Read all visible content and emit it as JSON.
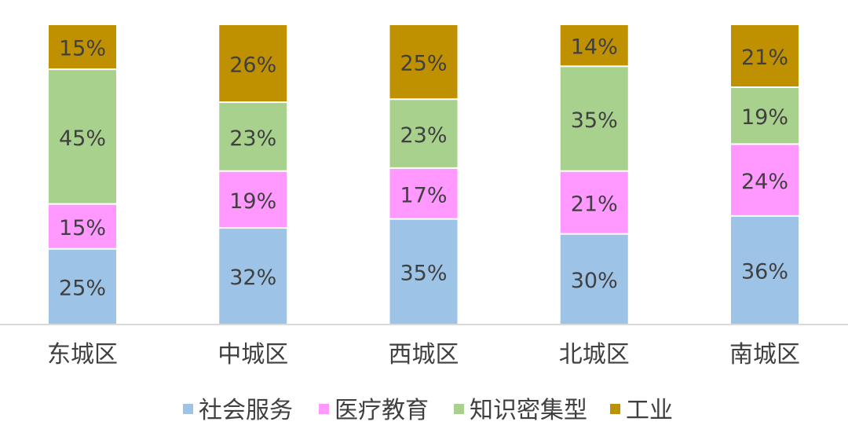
{
  "chart_data": {
    "type": "bar",
    "stacked": true,
    "categories": [
      "东城区",
      "中城区",
      "西城区",
      "北城区",
      "南城区"
    ],
    "series": [
      {
        "name": "社会服务",
        "values": [
          25,
          32,
          35,
          30,
          36
        ],
        "labels": [
          "25%",
          "32%",
          "35%",
          "30%",
          "36%"
        ],
        "color": "#9DC3E6"
      },
      {
        "name": "医疗教育",
        "values": [
          15,
          19,
          17,
          21,
          24
        ],
        "labels": [
          "15%",
          "19%",
          "17%",
          "21%",
          "24%"
        ],
        "color": "#FF99FF"
      },
      {
        "name": "知识密集型",
        "values": [
          45,
          23,
          23,
          35,
          19
        ],
        "labels": [
          "45%",
          "23%",
          "23%",
          "35%",
          "19%"
        ],
        "color": "#A9D18E"
      },
      {
        "name": "工业",
        "values": [
          15,
          26,
          25,
          14,
          21
        ],
        "labels": [
          "15%",
          "26%",
          "25%",
          "14%",
          "21%"
        ],
        "color": "#BF9000"
      }
    ],
    "ylim": [
      0,
      100
    ],
    "grid": false,
    "legend": "bottom",
    "axis_color": "#D9D9D9",
    "label_color": "#404040"
  }
}
